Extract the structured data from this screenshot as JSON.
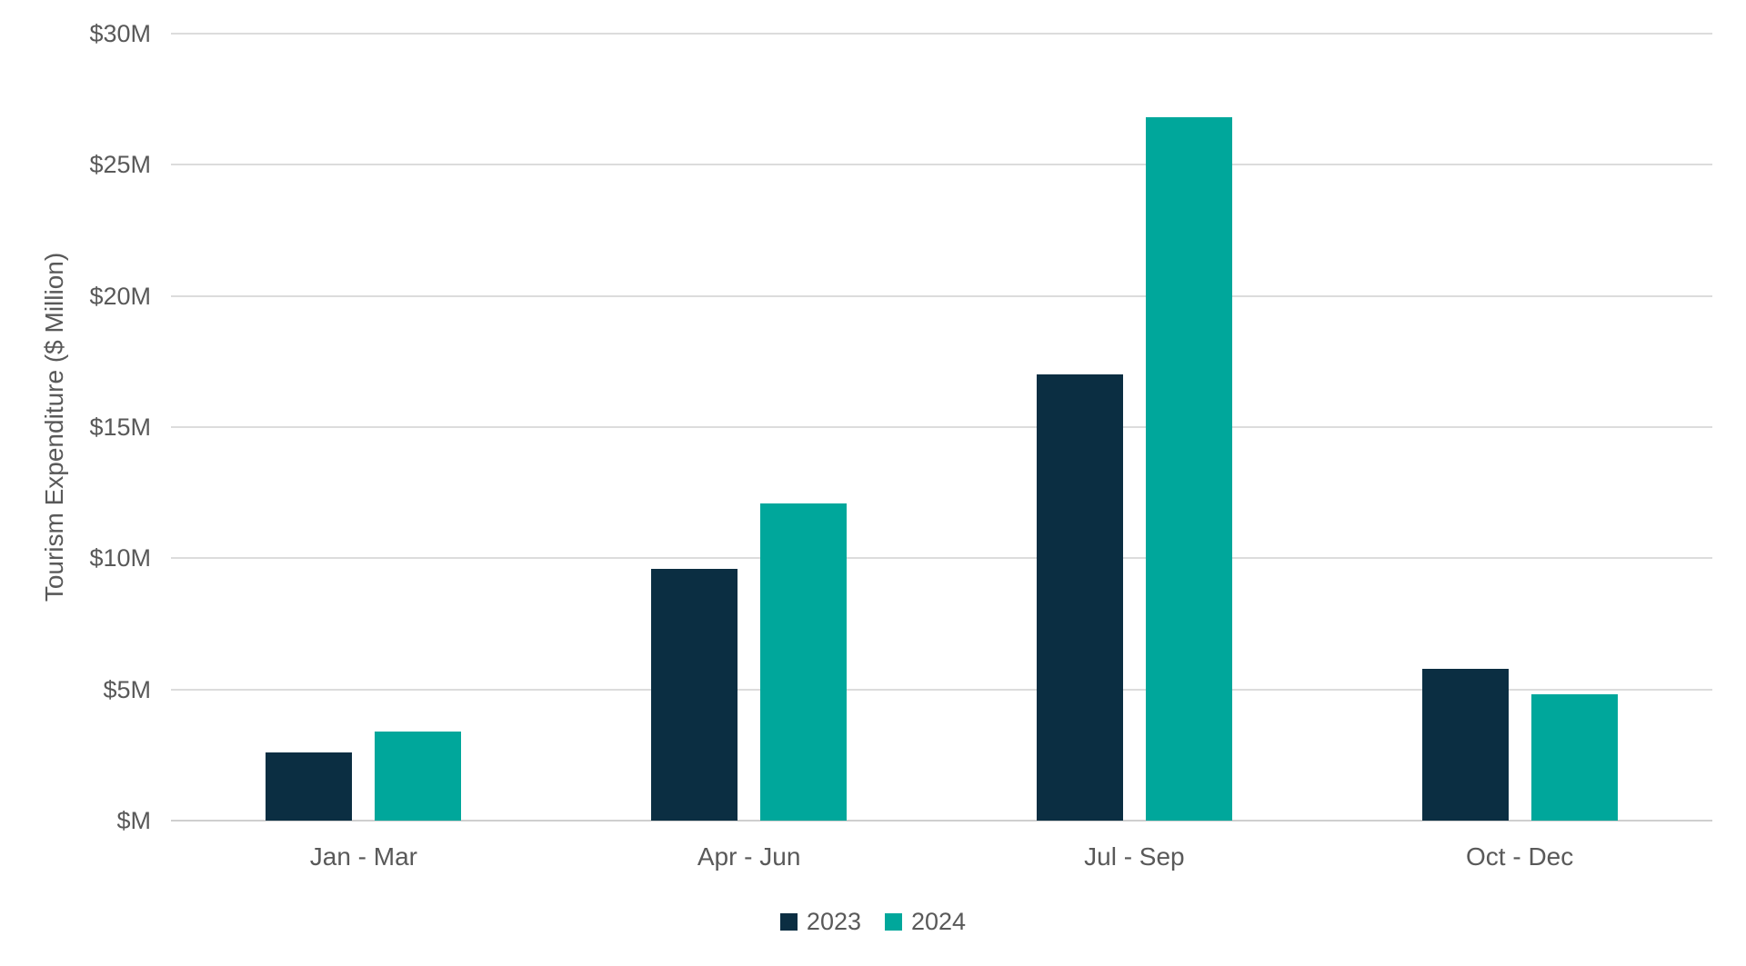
{
  "chart_data": {
    "type": "bar",
    "title": "",
    "categories": [
      "Jan - Mar",
      "Apr - Jun",
      "Jul - Sep",
      "Oct - Dec"
    ],
    "series": [
      {
        "name": "2023",
        "color": "#0B2E42",
        "values": [
          2.6,
          9.6,
          17.0,
          5.8
        ]
      },
      {
        "name": "2024",
        "color": "#00A79B",
        "values": [
          3.4,
          12.1,
          26.8,
          4.8
        ]
      }
    ],
    "xlabel": "",
    "ylabel": "Tourism Expenditure ($ Million)",
    "ylim": [
      0,
      30
    ],
    "ytick_step": 5,
    "ytick_labels": [
      "$M",
      "$5M",
      "$10M",
      "$15M",
      "$20M",
      "$25M",
      "$30M"
    ],
    "grid": "horizontal",
    "legend_position": "bottom",
    "colors": {
      "axis_text": "#595959",
      "gridline": "#DCDCDC",
      "baseline": "#CFCFCF",
      "background": "#FFFFFF"
    }
  }
}
